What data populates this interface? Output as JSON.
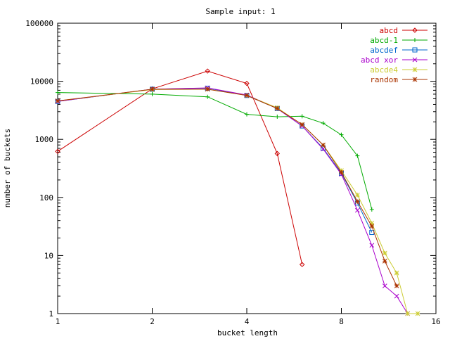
{
  "chart_data": {
    "type": "line",
    "title": "Sample input: 1",
    "xlabel": "bucket length",
    "ylabel": "number of buckets",
    "x_scale": "log2",
    "y_scale": "log10",
    "xlim": [
      1,
      16
    ],
    "ylim": [
      1,
      100000
    ],
    "x_ticks": [
      1,
      2,
      4,
      8,
      16
    ],
    "x_tick_labels": [
      "1",
      "2",
      "4",
      "8",
      "16"
    ],
    "y_ticks": [
      1,
      10,
      100,
      1000,
      10000,
      100000
    ],
    "y_tick_labels": [
      "1",
      "10",
      "100",
      "1000",
      "10000",
      "100000"
    ],
    "grid": false,
    "legend_position": "top-right",
    "series": [
      {
        "name": "abcd",
        "color": "#cc0000",
        "marker": "diamond",
        "x": [
          1,
          2,
          3,
          4,
          5,
          6
        ],
        "y": [
          620,
          7400,
          15000,
          9200,
          570,
          7
        ]
      },
      {
        "name": "abcd-1",
        "color": "#00aa00",
        "marker": "plus",
        "x": [
          1,
          2,
          3,
          4,
          5,
          6,
          7,
          8,
          9,
          10
        ],
        "y": [
          6400,
          6000,
          5400,
          2700,
          2450,
          2500,
          1900,
          1200,
          520,
          62
        ]
      },
      {
        "name": "abcdef",
        "color": "#0066cc",
        "marker": "square",
        "x": [
          1,
          2,
          3,
          4,
          5,
          6,
          7,
          8,
          9,
          10
        ],
        "y": [
          4500,
          7300,
          7600,
          5700,
          3400,
          1700,
          700,
          260,
          80,
          25
        ]
      },
      {
        "name": "abcd xor",
        "color": "#aa00cc",
        "marker": "x",
        "x": [
          1,
          2,
          3,
          4,
          5,
          6,
          7,
          8,
          9,
          10,
          11,
          12,
          13
        ],
        "y": [
          4500,
          7300,
          7700,
          5800,
          3400,
          1700,
          680,
          250,
          60,
          15,
          3,
          2,
          1
        ]
      },
      {
        "name": "abcde4",
        "color": "#cccc33",
        "marker": "star",
        "x": [
          1,
          2,
          3,
          4,
          5,
          6,
          7,
          8,
          9,
          10,
          11,
          12,
          13,
          14
        ],
        "y": [
          4600,
          7200,
          7300,
          5700,
          3500,
          1800,
          800,
          290,
          110,
          36,
          11,
          5,
          1,
          1
        ]
      },
      {
        "name": "random",
        "color": "#aa3300",
        "marker": "asterisk",
        "x": [
          1,
          2,
          3,
          4,
          5,
          6,
          7,
          8,
          9,
          10,
          11,
          12
        ],
        "y": [
          4600,
          7300,
          7300,
          5700,
          3400,
          1800,
          800,
          270,
          85,
          32,
          8,
          3
        ]
      }
    ]
  }
}
